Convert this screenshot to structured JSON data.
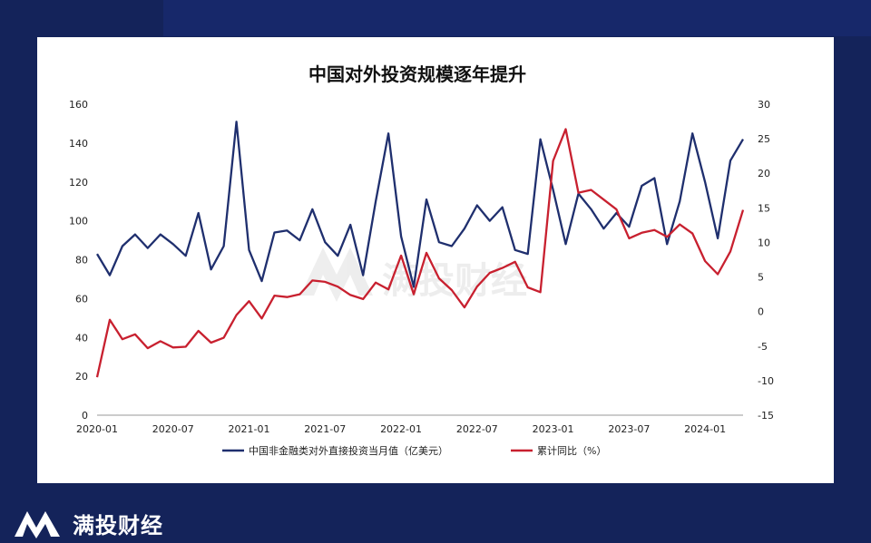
{
  "brand": {
    "name": "满投财经",
    "watermark": "满投财经"
  },
  "colors": {
    "background": "#14235a",
    "series1": "#1f2f6e",
    "series2": "#c8202f"
  },
  "chart_data": {
    "type": "line",
    "title": "中国对外投资规模逐年提升",
    "xlabel": "",
    "ylabel": "",
    "y2label": "",
    "ylim": [
      0,
      160
    ],
    "y2lim": [
      -15,
      30
    ],
    "yticks": [
      0,
      20,
      40,
      60,
      80,
      100,
      120,
      140,
      160
    ],
    "y2ticks": [
      -15,
      -10,
      -5,
      0,
      5,
      10,
      15,
      20,
      25,
      30
    ],
    "xtick_labels": [
      "2020-01",
      "2020-07",
      "2021-01",
      "2021-07",
      "2022-01",
      "2022-07",
      "2023-01",
      "2023-07",
      "2024-01"
    ],
    "x": [
      "2020-01",
      "2020-02",
      "2020-03",
      "2020-04",
      "2020-05",
      "2020-06",
      "2020-07",
      "2020-08",
      "2020-09",
      "2020-10",
      "2020-11",
      "2020-12",
      "2021-01",
      "2021-02",
      "2021-03",
      "2021-04",
      "2021-05",
      "2021-06",
      "2021-07",
      "2021-08",
      "2021-09",
      "2021-10",
      "2021-11",
      "2021-12",
      "2022-01",
      "2022-02",
      "2022-03",
      "2022-04",
      "2022-05",
      "2022-06",
      "2022-07",
      "2022-08",
      "2022-09",
      "2022-10",
      "2022-11",
      "2022-12",
      "2023-01",
      "2023-02",
      "2023-03",
      "2023-04",
      "2023-05",
      "2023-06",
      "2023-07",
      "2023-08",
      "2023-09",
      "2023-10",
      "2023-11",
      "2023-12",
      "2024-01",
      "2024-02",
      "2024-03",
      "2024-04"
    ],
    "legend_position": "bottom",
    "grid": false,
    "series": [
      {
        "name": "中国非金融类对外直接投资当月值（亿美元）",
        "axis": "left",
        "color": "#1f2f6e",
        "values": [
          83,
          72,
          87,
          93,
          86,
          93,
          88,
          82,
          104,
          75,
          87,
          151,
          85,
          69,
          94,
          95,
          90,
          106,
          89,
          82,
          98,
          72,
          110,
          145,
          92,
          66,
          111,
          89,
          87,
          96,
          108,
          100,
          107,
          85,
          83,
          142,
          116,
          88,
          114,
          106,
          96,
          104,
          97,
          118,
          122,
          88,
          110,
          145,
          120,
          91,
          131,
          142
        ]
      },
      {
        "name": "累计同比（%）",
        "axis": "right",
        "color": "#c8202f",
        "values": [
          -9.5,
          -1.2,
          -4,
          -3.3,
          -5.3,
          -4.3,
          -5.2,
          -5.1,
          -2.8,
          -4.5,
          -3.8,
          -0.5,
          1.5,
          -1,
          2.3,
          2.1,
          2.5,
          4.5,
          4.3,
          3.6,
          2.4,
          1.8,
          4.2,
          3.2,
          8.1,
          2.5,
          8.5,
          4.8,
          3.1,
          0.6,
          3.6,
          5.6,
          6.3,
          7.2,
          3.5,
          2.8,
          21.8,
          26.4,
          17.2,
          17.6,
          16.2,
          14.8,
          10.6,
          11.4,
          11.8,
          10.8,
          12.6,
          11.3,
          7.3,
          5.4,
          8.7,
          14.7
        ]
      }
    ]
  }
}
